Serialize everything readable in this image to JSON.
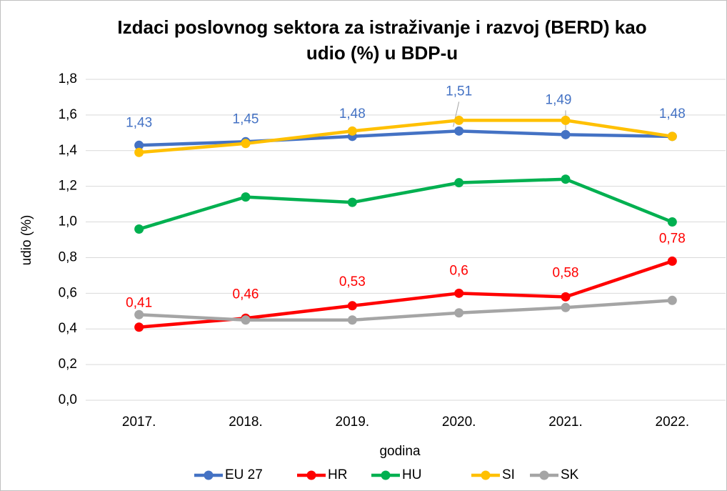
{
  "chart_data": {
    "type": "line",
    "title": [
      "Izdaci poslovnog sektora za istraživanje i razvoj (BERD) kao",
      "udio (%) u BDP-u"
    ],
    "x_label": "godina",
    "y_label": "udio (%)",
    "categories": [
      "2017.",
      "2018.",
      "2019.",
      "2020.",
      "2021.",
      "2022."
    ],
    "ylim": [
      0,
      1.8
    ],
    "yticks": [
      {
        "value": 0,
        "label": "0,0"
      },
      {
        "value": 0.2,
        "label": "0,2"
      },
      {
        "value": 0.4,
        "label": "0,4"
      },
      {
        "value": 0.6,
        "label": "0,6"
      },
      {
        "value": 0.8,
        "label": "0,8"
      },
      {
        "value": 1,
        "label": "1,0"
      },
      {
        "value": 1.2,
        "label": "1,2"
      },
      {
        "value": 1.4,
        "label": "1,4"
      },
      {
        "value": 1.6,
        "label": "1,6"
      },
      {
        "value": 1.8,
        "label": "1,8"
      }
    ],
    "grid": true,
    "legend": "bottom",
    "series": [
      {
        "name": "EU 27",
        "color": "#4472c4",
        "values": [
          1.43,
          1.45,
          1.48,
          1.51,
          1.49,
          1.48
        ],
        "value_labels": [
          "1,43",
          "1,45",
          "1,48",
          "1,51",
          "1,49",
          "1,48"
        ]
      },
      {
        "name": "HR",
        "color": "#ff0000",
        "values": [
          0.41,
          0.46,
          0.53,
          0.6,
          0.58,
          0.78
        ],
        "value_labels": [
          "0,41",
          "0,46",
          "0,53",
          "0,6",
          "0,58",
          "0,78"
        ]
      },
      {
        "name": "HU",
        "color": "#00b050",
        "values": [
          0.96,
          1.14,
          1.11,
          1.22,
          1.24,
          1.0
        ]
      },
      {
        "name": "SI",
        "color": "#ffc000",
        "values": [
          1.39,
          1.44,
          1.51,
          1.57,
          1.57,
          1.48
        ]
      },
      {
        "name": "SK",
        "color": "#a5a5a5",
        "values": [
          0.48,
          0.45,
          0.45,
          0.49,
          0.52,
          0.56
        ]
      }
    ]
  }
}
